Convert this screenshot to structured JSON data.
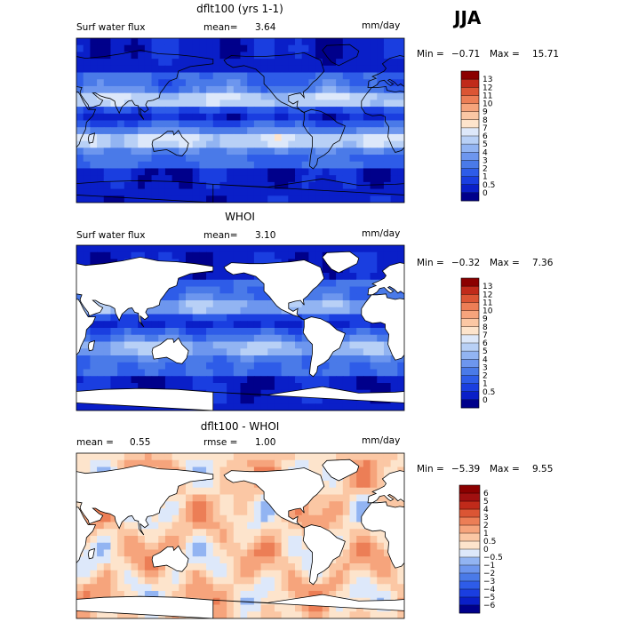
{
  "season": "JJA",
  "chart_data": [
    {
      "type": "heatmap",
      "title": "dflt100 (yrs 1-1)",
      "variable": "Surf water flux",
      "mean_label": "mean=",
      "mean": "3.64",
      "units": "mm/day",
      "min_label": "Min =",
      "min": "−0.71",
      "max_label": "Max =",
      "max": "15.71",
      "levels": [
        "0",
        "0.5",
        "1",
        "2",
        "3",
        "4",
        "5",
        "6",
        "7",
        "8",
        "9",
        "10",
        "11",
        "12",
        "13"
      ],
      "colors": [
        "#00008b",
        "#0a1fc8",
        "#1a3ee0",
        "#2e5ce8",
        "#4a7ae8",
        "#6d96ee",
        "#92b4f2",
        "#b8d0f6",
        "#dde8fa",
        "#fde4cc",
        "#fbc7a4",
        "#f6a47c",
        "#ec7e56",
        "#db5534",
        "#c02a1a",
        "#8b0000"
      ],
      "ocean_only": false
    },
    {
      "type": "heatmap",
      "title": "WHOI",
      "variable": "Surf water flux",
      "mean_label": "mean=",
      "mean": "3.10",
      "units": "mm/day",
      "min_label": "Min =",
      "min": "−0.32",
      "max_label": "Max =",
      "max": "7.36",
      "levels": [
        "0",
        "0.5",
        "1",
        "2",
        "3",
        "4",
        "5",
        "6",
        "7",
        "8",
        "9",
        "10",
        "11",
        "12",
        "13"
      ],
      "colors": [
        "#00008b",
        "#0a1fc8",
        "#1a3ee0",
        "#2e5ce8",
        "#4a7ae8",
        "#6d96ee",
        "#92b4f2",
        "#b8d0f6",
        "#dde8fa",
        "#fde4cc",
        "#fbc7a4",
        "#f6a47c",
        "#ec7e56",
        "#db5534",
        "#c02a1a",
        "#8b0000"
      ],
      "ocean_only": true
    },
    {
      "type": "heatmap",
      "title": "dflt100 - WHOI",
      "mean_label": "mean =",
      "mean": "0.55",
      "rmse_label": "rmse =",
      "rmse": "1.00",
      "units": "mm/day",
      "min_label": "Min =",
      "min": "−5.39",
      "max_label": "Max =",
      "max": "9.55",
      "levels": [
        "−6",
        "−5",
        "−4",
        "−3",
        "−2",
        "−1",
        "−0.5",
        "0",
        "0.5",
        "1",
        "2",
        "3",
        "4",
        "5",
        "6"
      ],
      "colors": [
        "#00008b",
        "#0a1fc8",
        "#1a3ee0",
        "#2e5ce8",
        "#4a7ae8",
        "#6d96ee",
        "#92b4f2",
        "#dde8fa",
        "#fde4cc",
        "#fbc7a4",
        "#f6a47c",
        "#ec7e56",
        "#db5534",
        "#c02a1a",
        "#a01010",
        "#8b0000"
      ],
      "ocean_only": true
    }
  ]
}
